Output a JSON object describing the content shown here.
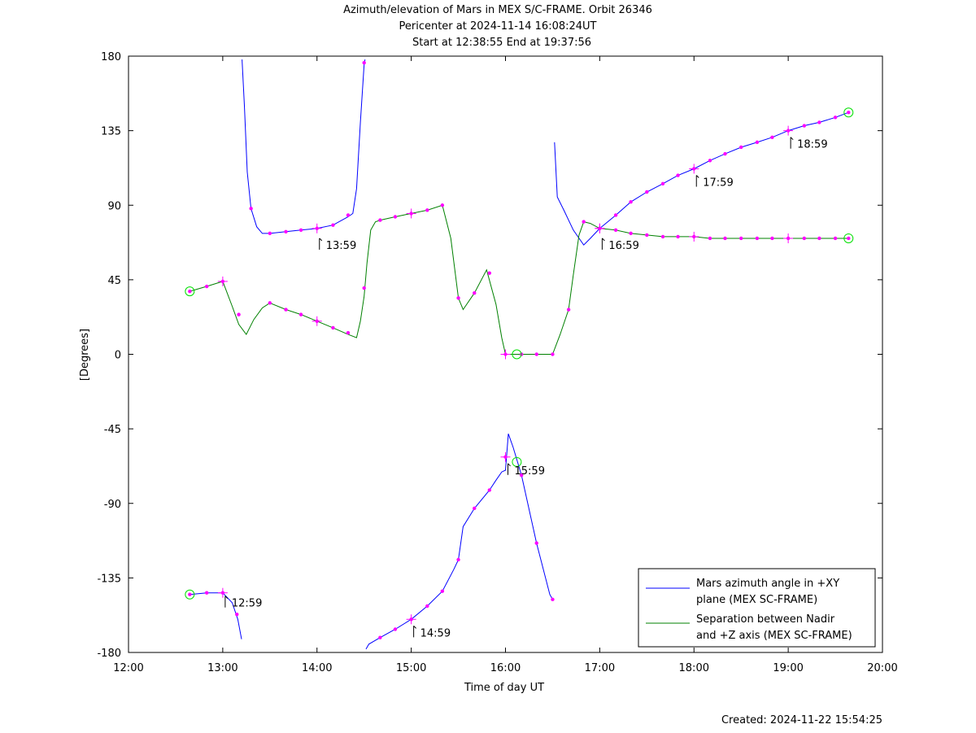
{
  "chart_data": {
    "type": "line",
    "title": "Azimuth/elevation of Mars in MEX S/C-FRAME.  Orbit 26346",
    "subtitle": "Pericenter at 2024-11-14 16:08:24UT",
    "subtitle2": "Start at 12:38:55 End at 19:37:56",
    "xlabel": "Time of day UT",
    "ylabel": "[Degrees]",
    "xlim": [
      12,
      20
    ],
    "ylim": [
      -180,
      180
    ],
    "x_ticks": [
      12,
      13,
      14,
      15,
      16,
      17,
      18,
      19,
      20
    ],
    "x_tick_labels": [
      "12:00",
      "13:00",
      "14:00",
      "15:00",
      "16:00",
      "17:00",
      "18:00",
      "19:00",
      "20:00"
    ],
    "y_ticks": [
      180,
      135,
      90,
      45,
      0,
      -45,
      -90,
      -135,
      -180
    ],
    "y_tick_labels": [
      "180",
      "135",
      "90",
      "45",
      "0",
      "-45",
      "-90",
      "-135",
      "-180"
    ],
    "grid": false,
    "legend_position": "bottom-right",
    "footer": "Created: 2024-11-22 15:54:25",
    "series": [
      {
        "name": "Mars azimuth angle in +XY plane (MEX SC-FRAME)",
        "legend_lines": [
          "Mars azimuth angle in +XY",
          "plane (MEX SC-FRAME)"
        ],
        "color": "#0000ff",
        "points": [
          [
            12.65,
            -145
          ],
          [
            12.83,
            -144
          ],
          [
            13.0,
            -144
          ],
          [
            13.1,
            -150
          ],
          [
            13.16,
            -160
          ],
          [
            13.2,
            -172
          ],
          [
            null,
            null
          ],
          [
            13.205,
            178
          ],
          [
            13.23,
            150
          ],
          [
            13.26,
            110
          ],
          [
            13.3,
            88
          ],
          [
            13.36,
            77
          ],
          [
            13.42,
            73
          ],
          [
            13.5,
            73
          ],
          [
            13.67,
            74
          ],
          [
            13.83,
            75
          ],
          [
            14.0,
            76
          ],
          [
            14.17,
            78
          ],
          [
            14.33,
            83
          ],
          [
            14.38,
            85
          ],
          [
            14.42,
            100
          ],
          [
            14.46,
            140
          ],
          [
            14.5,
            175
          ],
          [
            14.51,
            178
          ],
          [
            null,
            null
          ],
          [
            14.52,
            -178
          ],
          [
            14.55,
            -175
          ],
          [
            14.67,
            -171
          ],
          [
            14.83,
            -166
          ],
          [
            15.0,
            -160
          ],
          [
            15.17,
            -152
          ],
          [
            15.33,
            -143
          ],
          [
            15.45,
            -130
          ],
          [
            15.5,
            -124
          ],
          [
            15.55,
            -104
          ],
          [
            15.67,
            -93
          ],
          [
            15.83,
            -82
          ],
          [
            15.9,
            -76
          ],
          [
            15.96,
            -71
          ],
          [
            16.0,
            -70
          ],
          [
            16.03,
            -48
          ],
          [
            16.08,
            -56
          ],
          [
            16.17,
            -73
          ],
          [
            16.33,
            -114
          ],
          [
            16.47,
            -145
          ],
          [
            16.5,
            -148
          ],
          [
            null,
            null
          ],
          [
            16.52,
            128
          ],
          [
            16.55,
            95
          ],
          [
            16.62,
            87
          ],
          [
            16.72,
            75
          ],
          [
            16.83,
            66
          ],
          [
            16.9,
            70
          ],
          [
            17.0,
            76
          ],
          [
            17.17,
            84
          ],
          [
            17.33,
            92
          ],
          [
            17.5,
            98
          ],
          [
            17.67,
            103
          ],
          [
            17.83,
            108
          ],
          [
            18.0,
            112
          ],
          [
            18.17,
            117
          ],
          [
            18.33,
            121
          ],
          [
            18.5,
            125
          ],
          [
            18.67,
            128
          ],
          [
            18.83,
            131
          ],
          [
            19.0,
            135
          ],
          [
            19.17,
            138
          ],
          [
            19.33,
            140
          ],
          [
            19.5,
            143
          ],
          [
            19.64,
            146
          ]
        ],
        "markers": [
          [
            12.65,
            -145
          ],
          [
            12.83,
            -144
          ],
          [
            13.0,
            -144
          ],
          [
            13.15,
            -157
          ],
          [
            13.3,
            88
          ],
          [
            13.5,
            73
          ],
          [
            13.67,
            74
          ],
          [
            13.83,
            75
          ],
          [
            14.0,
            76
          ],
          [
            14.17,
            78
          ],
          [
            14.33,
            84
          ],
          [
            14.5,
            176
          ],
          [
            14.67,
            -171
          ],
          [
            14.83,
            -166
          ],
          [
            15.0,
            -160
          ],
          [
            15.17,
            -152
          ],
          [
            15.33,
            -143
          ],
          [
            15.5,
            -124
          ],
          [
            15.67,
            -93
          ],
          [
            15.83,
            -82
          ],
          [
            16.0,
            -62
          ],
          [
            16.17,
            -73
          ],
          [
            16.33,
            -114
          ],
          [
            16.5,
            -148
          ],
          [
            17.0,
            76
          ],
          [
            17.17,
            84
          ],
          [
            17.33,
            92
          ],
          [
            17.5,
            98
          ],
          [
            17.67,
            103
          ],
          [
            17.83,
            108
          ],
          [
            18.0,
            112
          ],
          [
            18.17,
            117
          ],
          [
            18.33,
            121
          ],
          [
            18.5,
            125
          ],
          [
            18.67,
            128
          ],
          [
            18.83,
            131
          ],
          [
            19.0,
            135
          ],
          [
            19.17,
            138
          ],
          [
            19.33,
            140
          ],
          [
            19.5,
            143
          ],
          [
            19.64,
            146
          ]
        ]
      },
      {
        "name": "Separation between Nadir and +Z axis (MEX SC-FRAME)",
        "legend_lines": [
          "Separation between Nadir",
          "and +Z axis (MEX SC-FRAME)"
        ],
        "color": "#008000",
        "points": [
          [
            12.65,
            38
          ],
          [
            12.83,
            41
          ],
          [
            13.0,
            44
          ],
          [
            13.1,
            29
          ],
          [
            13.17,
            18
          ],
          [
            13.25,
            12
          ],
          [
            13.33,
            21
          ],
          [
            13.42,
            28
          ],
          [
            13.5,
            31
          ],
          [
            13.67,
            27
          ],
          [
            13.83,
            24
          ],
          [
            14.0,
            20
          ],
          [
            14.17,
            16
          ],
          [
            14.33,
            12
          ],
          [
            14.42,
            10
          ],
          [
            14.46,
            20
          ],
          [
            14.5,
            35
          ],
          [
            14.53,
            55
          ],
          [
            14.57,
            75
          ],
          [
            14.62,
            80
          ],
          [
            14.67,
            81
          ],
          [
            14.83,
            83
          ],
          [
            15.0,
            85
          ],
          [
            15.17,
            87
          ],
          [
            15.33,
            90
          ],
          [
            15.42,
            70
          ],
          [
            15.5,
            34
          ],
          [
            15.55,
            27
          ],
          [
            15.67,
            37
          ],
          [
            15.8,
            51
          ],
          [
            15.9,
            30
          ],
          [
            15.96,
            10
          ],
          [
            16.0,
            0
          ],
          [
            16.17,
            0
          ],
          [
            16.33,
            0
          ],
          [
            16.5,
            0
          ],
          [
            16.58,
            12
          ],
          [
            16.67,
            27
          ],
          [
            16.72,
            48
          ],
          [
            16.78,
            72
          ],
          [
            16.83,
            80
          ],
          [
            16.9,
            79
          ],
          [
            17.0,
            76
          ],
          [
            17.17,
            75
          ],
          [
            17.33,
            73
          ],
          [
            17.5,
            72
          ],
          [
            17.67,
            71
          ],
          [
            17.83,
            71
          ],
          [
            18.0,
            71
          ],
          [
            18.17,
            70
          ],
          [
            18.33,
            70
          ],
          [
            18.5,
            70
          ],
          [
            18.67,
            70
          ],
          [
            18.83,
            70
          ],
          [
            19.0,
            70
          ],
          [
            19.17,
            70
          ],
          [
            19.33,
            70
          ],
          [
            19.5,
            70
          ],
          [
            19.64,
            70
          ]
        ],
        "markers": [
          [
            12.65,
            38
          ],
          [
            12.83,
            41
          ],
          [
            13.0,
            44
          ],
          [
            13.17,
            24
          ],
          [
            13.5,
            31
          ],
          [
            13.67,
            27
          ],
          [
            13.83,
            24
          ],
          [
            14.0,
            20
          ],
          [
            14.17,
            16
          ],
          [
            14.33,
            13
          ],
          [
            14.5,
            40
          ],
          [
            14.67,
            81
          ],
          [
            14.83,
            83
          ],
          [
            15.0,
            85
          ],
          [
            15.17,
            87
          ],
          [
            15.33,
            90
          ],
          [
            15.5,
            34
          ],
          [
            15.67,
            37
          ],
          [
            15.83,
            49
          ],
          [
            16.0,
            0
          ],
          [
            16.17,
            0
          ],
          [
            16.33,
            0
          ],
          [
            16.5,
            0
          ],
          [
            16.67,
            27
          ],
          [
            16.83,
            80
          ],
          [
            17.0,
            76
          ],
          [
            17.17,
            75
          ],
          [
            17.33,
            73
          ],
          [
            17.5,
            72
          ],
          [
            17.67,
            71
          ],
          [
            17.83,
            71
          ],
          [
            18.0,
            71
          ],
          [
            18.17,
            70
          ],
          [
            18.33,
            70
          ],
          [
            18.5,
            70
          ],
          [
            18.67,
            70
          ],
          [
            18.83,
            70
          ],
          [
            19.0,
            70
          ],
          [
            19.17,
            70
          ],
          [
            19.33,
            70
          ],
          [
            19.5,
            70
          ],
          [
            19.64,
            70
          ]
        ]
      }
    ],
    "hour_crosses": [
      [
        13.0,
        -144
      ],
      [
        13.0,
        44
      ],
      [
        14.0,
        76
      ],
      [
        14.0,
        20
      ],
      [
        15.0,
        -160
      ],
      [
        15.0,
        85
      ],
      [
        16.0,
        -62
      ],
      [
        16.0,
        0
      ],
      [
        17.0,
        76
      ],
      [
        17.0,
        76
      ],
      [
        18.0,
        112
      ],
      [
        18.0,
        71
      ],
      [
        19.0,
        135
      ],
      [
        19.0,
        70
      ]
    ],
    "endpoint_circles": [
      [
        12.65,
        38
      ],
      [
        12.65,
        -145
      ],
      [
        16.12,
        0
      ],
      [
        16.12,
        -65
      ],
      [
        19.64,
        146
      ],
      [
        19.64,
        70
      ]
    ],
    "annotations": [
      {
        "x": 13.0,
        "y": -144,
        "text": "12:59"
      },
      {
        "x": 14.0,
        "y": 72,
        "text": "13:59"
      },
      {
        "x": 15.0,
        "y": -162,
        "text": "14:59"
      },
      {
        "x": 16.0,
        "y": -64,
        "text": "15:59"
      },
      {
        "x": 17.0,
        "y": 72,
        "text": "16:59"
      },
      {
        "x": 18.0,
        "y": 110,
        "text": "17:59"
      },
      {
        "x": 19.0,
        "y": 133,
        "text": "18:59"
      }
    ]
  }
}
